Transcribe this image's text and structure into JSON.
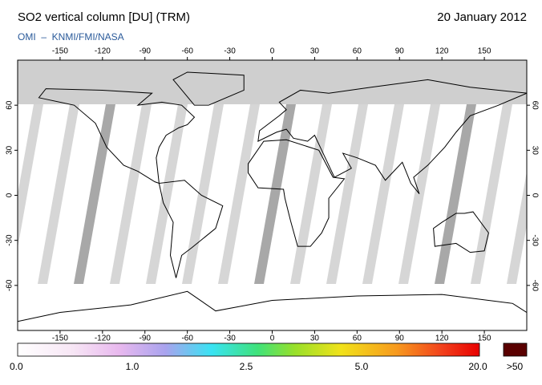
{
  "header": {
    "title": "SO2 vertical column [DU] (TRM)",
    "date": "20 January 2012",
    "subtitle": "OMI  –  KNMI/FMI/NASA"
  },
  "map": {
    "lon_range": [
      -180,
      180
    ],
    "lat_range": [
      -90,
      90
    ],
    "lon_ticks": [
      -150,
      -120,
      -90,
      -60,
      -30,
      0,
      30,
      60,
      90,
      120,
      150
    ],
    "lat_ticks": [
      60,
      30,
      0,
      -30,
      -60
    ]
  },
  "legend": {
    "labels": [
      "0.0",
      "1.0",
      "2.5",
      "5.0",
      "20.0",
      ">50"
    ]
  }
}
